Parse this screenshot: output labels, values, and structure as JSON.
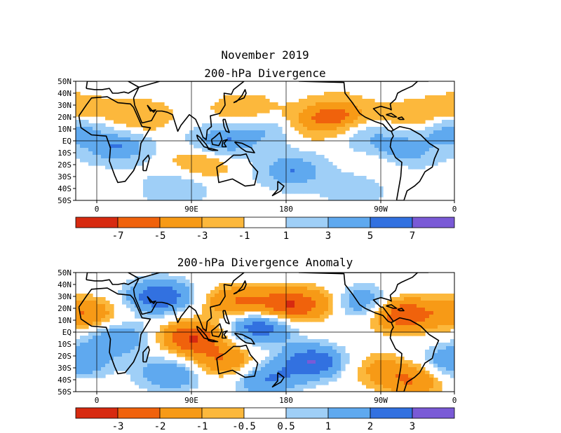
{
  "title": "November 2019",
  "colors": {
    "ocean": "#ffffff",
    "coast": "#000000",
    "scale": [
      "#d72a10",
      "#f0620c",
      "#f79a16",
      "#fcb83c",
      "#ffffff",
      "#9fcff7",
      "#5fa9ef",
      "#3271e0",
      "#7a5ad6"
    ]
  },
  "chart_data": [
    {
      "type": "heatmap",
      "title": "200-hPa Divergence",
      "lon_ticks": [
        "0",
        "90E",
        "180",
        "90W",
        "0"
      ],
      "lat_ticks": [
        "50N",
        "40N",
        "30N",
        "20N",
        "10N",
        "EQ",
        "10S",
        "20S",
        "30S",
        "40S",
        "50S"
      ],
      "colorbar_labels": [
        "-7",
        "-5",
        "-3",
        "-1",
        "1",
        "3",
        "5",
        "7"
      ],
      "colorbar_levels": [
        -7,
        -5,
        -3,
        -1,
        1,
        3,
        5,
        7
      ],
      "blobs": [
        {
          "lon": 230,
          "lat": 22,
          "v": -5
        },
        {
          "lon": 300,
          "lat": 18,
          "v": -3
        },
        {
          "lon": 140,
          "lat": 25,
          "v": -3
        },
        {
          "lon": 40,
          "lat": 20,
          "v": -3
        },
        {
          "lon": 100,
          "lat": -18,
          "v": -3
        },
        {
          "lon": 270,
          "lat": -20,
          "v": -3
        },
        {
          "lon": 340,
          "lat": 25,
          "v": -3
        },
        {
          "lon": 160,
          "lat": 10,
          "v": 3
        },
        {
          "lon": 120,
          "lat": 0,
          "v": 5
        },
        {
          "lon": 185,
          "lat": -25,
          "v": 5
        },
        {
          "lon": 20,
          "lat": -5,
          "v": 5
        },
        {
          "lon": 290,
          "lat": -10,
          "v": 5
        },
        {
          "lon": 335,
          "lat": 10,
          "v": 5
        },
        {
          "lon": 245,
          "lat": -38,
          "v": 3
        },
        {
          "lon": 75,
          "lat": -40,
          "v": 3
        },
        {
          "lon": 205,
          "lat": 15,
          "v": -3
        },
        {
          "lon": 260,
          "lat": 5,
          "v": 3
        }
      ]
    },
    {
      "type": "heatmap",
      "title": "200-hPa Divergence Anomaly",
      "lon_ticks": [
        "0",
        "90E",
        "180",
        "90W",
        "0"
      ],
      "lat_ticks": [
        "50N",
        "40N",
        "30N",
        "20N",
        "10N",
        "EQ",
        "10S",
        "20S",
        "30S",
        "40S",
        "50S"
      ],
      "colorbar_labels": [
        "-3",
        "-2",
        "-1",
        "-0.5",
        "0.5",
        "1",
        "2",
        "3"
      ],
      "colorbar_levels": [
        -3,
        -2,
        -1,
        -0.5,
        0.5,
        1,
        2,
        3
      ],
      "blobs": [
        {
          "lon": 90,
          "lat": -5,
          "v": -3
        },
        {
          "lon": 290,
          "lat": 15,
          "v": -3
        },
        {
          "lon": 180,
          "lat": 22,
          "v": -3
        },
        {
          "lon": 225,
          "lat": 25,
          "v": -2
        },
        {
          "lon": 130,
          "lat": 25,
          "v": -2
        },
        {
          "lon": 120,
          "lat": -25,
          "v": -2
        },
        {
          "lon": 60,
          "lat": 30,
          "v": 3
        },
        {
          "lon": 155,
          "lat": 5,
          "v": 3
        },
        {
          "lon": 205,
          "lat": -25,
          "v": 3
        },
        {
          "lon": 245,
          "lat": 25,
          "v": 3
        },
        {
          "lon": 70,
          "lat": -35,
          "v": 2
        },
        {
          "lon": 340,
          "lat": -25,
          "v": 2
        },
        {
          "lon": 350,
          "lat": 15,
          "v": -2
        },
        {
          "lon": 20,
          "lat": -5,
          "v": 2
        },
        {
          "lon": 265,
          "lat": -30,
          "v": -1
        },
        {
          "lon": 160,
          "lat": -40,
          "v": 2
        },
        {
          "lon": 300,
          "lat": -40,
          "v": -2
        }
      ]
    }
  ]
}
